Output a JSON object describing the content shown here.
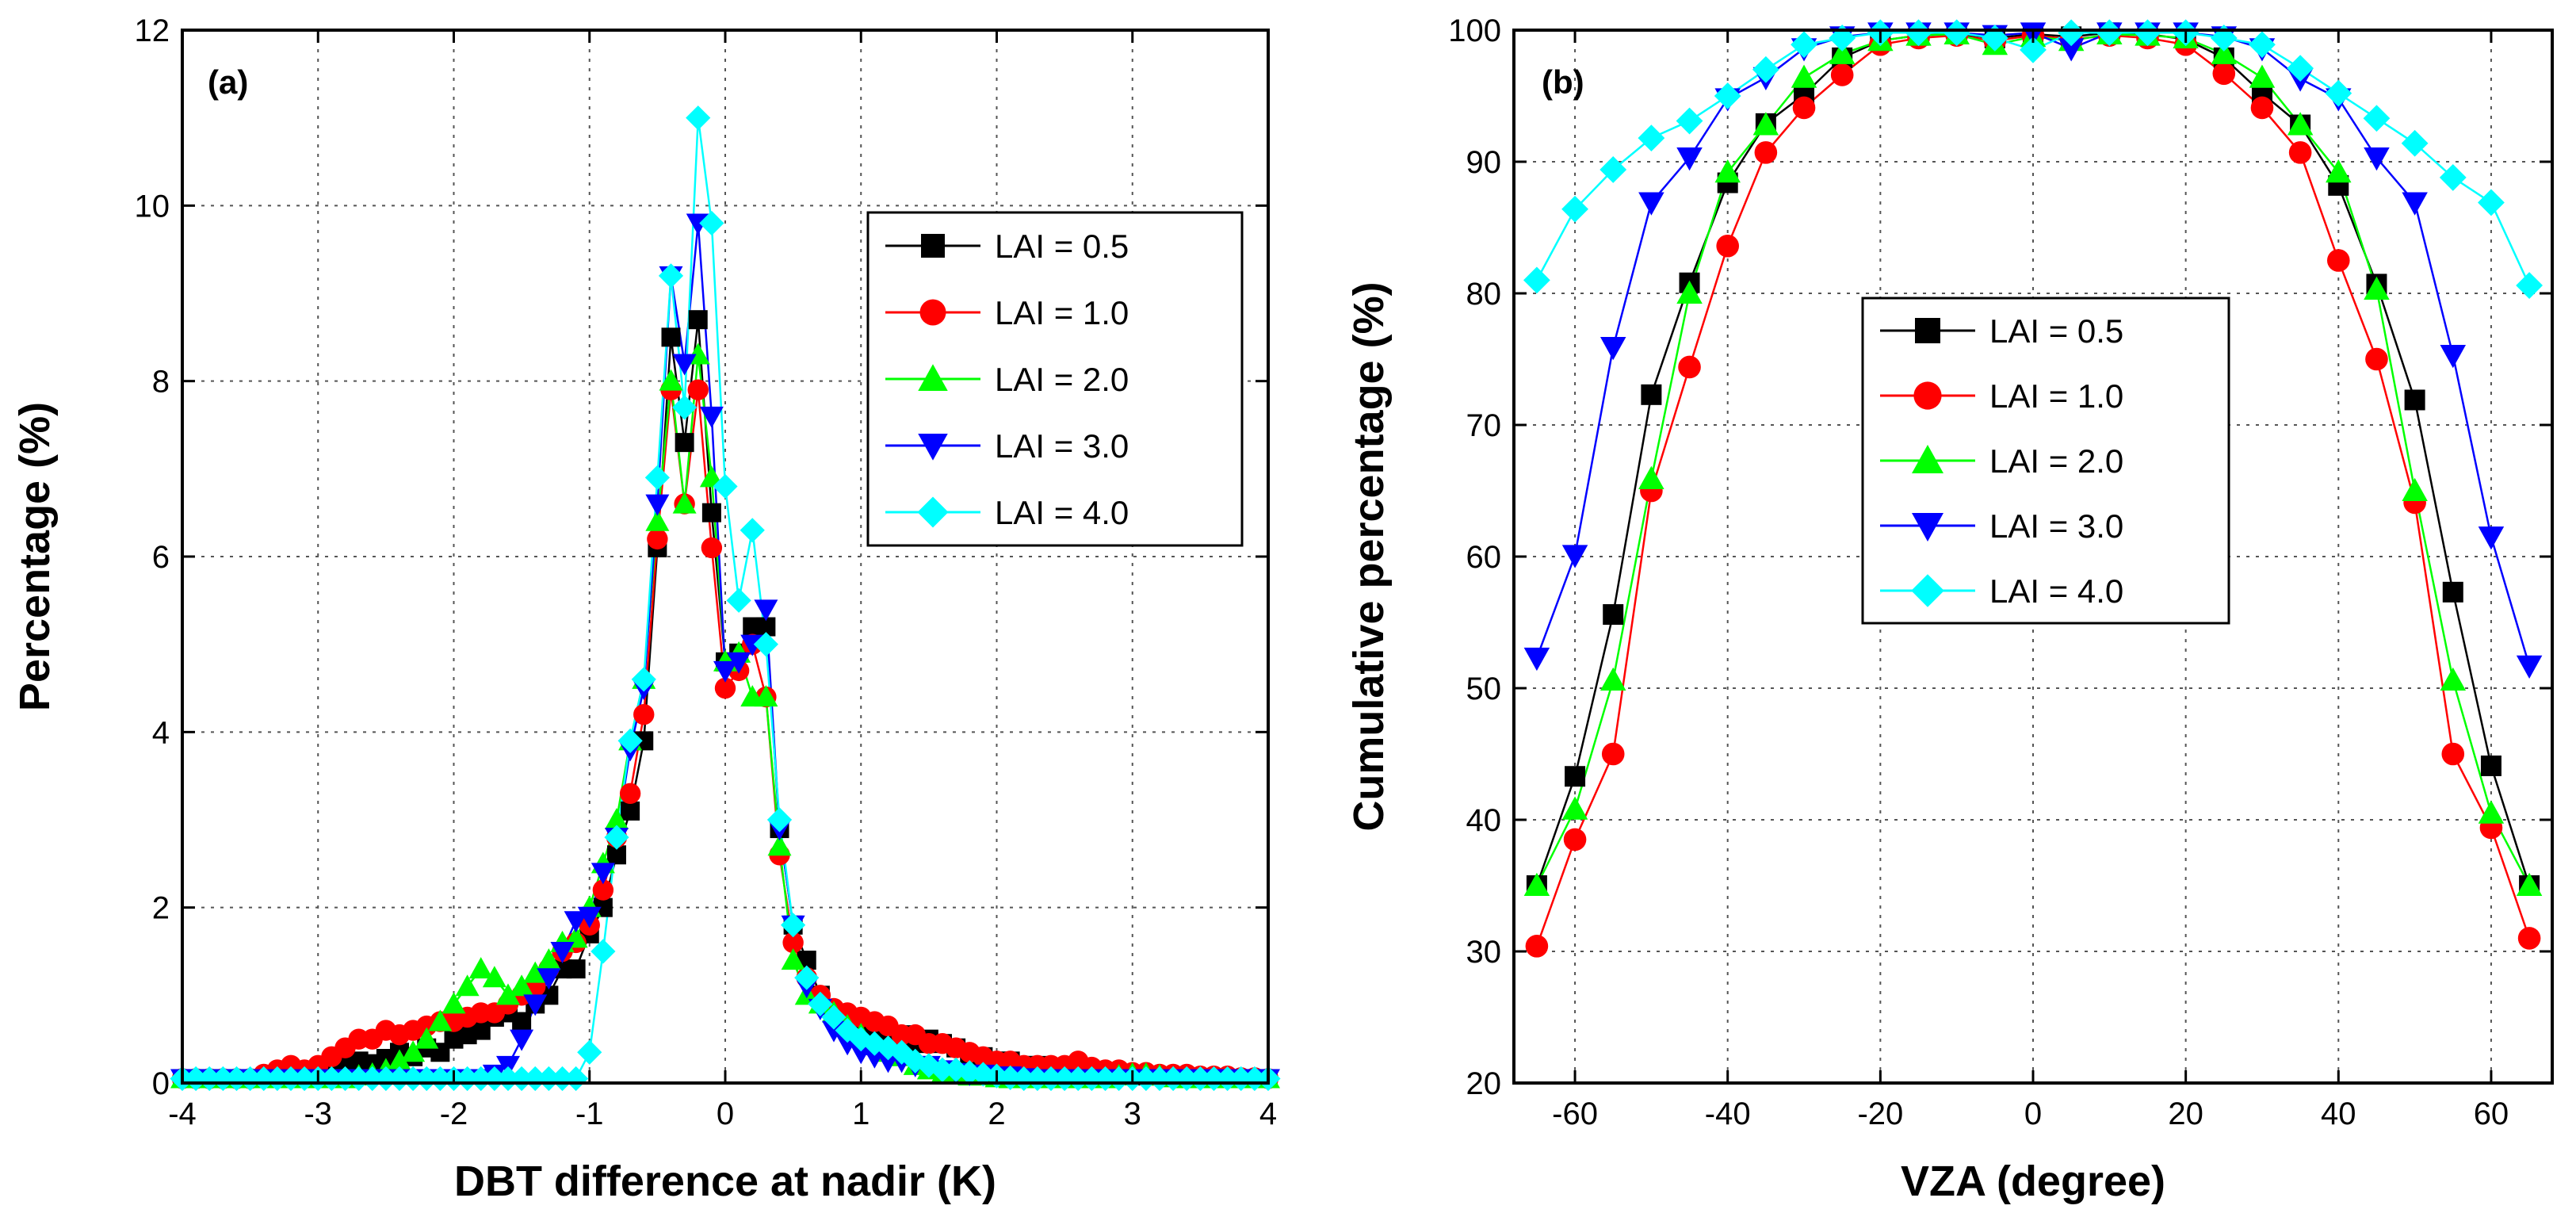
{
  "chart_data": [
    {
      "panel": "(a)",
      "type": "line",
      "xlabel": "DBT difference at nadir (K)",
      "ylabel": "Percentage (%)",
      "xlim": [
        -4,
        4
      ],
      "ylim": [
        0,
        12
      ],
      "xticks": [
        -4,
        -3,
        -2,
        -1,
        0,
        1,
        2,
        3,
        4
      ],
      "yticks": [
        0,
        2,
        4,
        6,
        8,
        10,
        12
      ],
      "grid": true,
      "legend": "center-right",
      "x": [
        -4.0,
        -3.9,
        -3.8,
        -3.7,
        -3.6,
        -3.5,
        -3.4,
        -3.3,
        -3.2,
        -3.1,
        -3.0,
        -2.9,
        -2.8,
        -2.7,
        -2.6,
        -2.5,
        -2.4,
        -2.3,
        -2.2,
        -2.1,
        -2.0,
        -1.9,
        -1.8,
        -1.7,
        -1.6,
        -1.5,
        -1.4,
        -1.3,
        -1.2,
        -1.1,
        -1.0,
        -0.9,
        -0.8,
        -0.7,
        -0.6,
        -0.5,
        -0.4,
        -0.3,
        -0.2,
        -0.1,
        0.0,
        0.1,
        0.2,
        0.3,
        0.4,
        0.5,
        0.6,
        0.7,
        0.8,
        0.9,
        1.0,
        1.1,
        1.2,
        1.3,
        1.4,
        1.5,
        1.6,
        1.7,
        1.8,
        1.9,
        2.0,
        2.1,
        2.2,
        2.3,
        2.4,
        2.5,
        2.6,
        2.7,
        2.8,
        2.9,
        3.0,
        3.1,
        3.2,
        3.3,
        3.4,
        3.5,
        3.6,
        3.7,
        3.8,
        3.9,
        4.0
      ],
      "series": [
        {
          "name": "LAI = 0.5",
          "color": "#000000",
          "marker": "square",
          "values": [
            0.05,
            0.05,
            0.05,
            0.05,
            0.05,
            0.05,
            0.05,
            0.05,
            0.08,
            0.08,
            0.1,
            0.12,
            0.2,
            0.25,
            0.22,
            0.28,
            0.35,
            0.3,
            0.4,
            0.35,
            0.5,
            0.55,
            0.6,
            0.75,
            0.8,
            0.7,
            0.9,
            1.0,
            1.3,
            1.3,
            1.7,
            2.0,
            2.6,
            3.1,
            3.9,
            6.1,
            8.5,
            7.3,
            8.7,
            6.5,
            4.8,
            4.9,
            5.2,
            5.2,
            2.9,
            1.8,
            1.4,
            1.0,
            0.8,
            0.7,
            0.6,
            0.6,
            0.5,
            0.55,
            0.45,
            0.5,
            0.45,
            0.4,
            0.3,
            0.3,
            0.25,
            0.25,
            0.2,
            0.2,
            0.15,
            0.15,
            0.15,
            0.12,
            0.12,
            0.1,
            0.1,
            0.08,
            0.08,
            0.08,
            0.05,
            0.05,
            0.05,
            0.05,
            0.05,
            0.05,
            0.05
          ]
        },
        {
          "name": "LAI = 1.0",
          "color": "#ff0000",
          "marker": "circle",
          "values": [
            0.05,
            0.05,
            0.05,
            0.05,
            0.05,
            0.05,
            0.1,
            0.15,
            0.2,
            0.15,
            0.2,
            0.3,
            0.4,
            0.5,
            0.5,
            0.6,
            0.55,
            0.6,
            0.65,
            0.7,
            0.7,
            0.75,
            0.8,
            0.8,
            0.9,
            1.0,
            1.1,
            1.3,
            1.5,
            1.6,
            1.8,
            2.2,
            2.8,
            3.3,
            4.2,
            6.2,
            7.9,
            6.6,
            7.9,
            6.1,
            4.5,
            4.7,
            5.0,
            4.4,
            2.6,
            1.6,
            1.2,
            1.0,
            0.85,
            0.8,
            0.75,
            0.7,
            0.65,
            0.55,
            0.55,
            0.45,
            0.45,
            0.4,
            0.35,
            0.3,
            0.25,
            0.25,
            0.2,
            0.2,
            0.2,
            0.2,
            0.25,
            0.18,
            0.15,
            0.15,
            0.12,
            0.12,
            0.1,
            0.1,
            0.1,
            0.08,
            0.08,
            0.08,
            0.06,
            0.06,
            0.05
          ]
        },
        {
          "name": "LAI = 2.0",
          "color": "#00ff00",
          "marker": "triangle-up",
          "values": [
            0.05,
            0.05,
            0.05,
            0.05,
            0.05,
            0.05,
            0.05,
            0.05,
            0.05,
            0.05,
            0.05,
            0.05,
            0.05,
            0.08,
            0.1,
            0.15,
            0.25,
            0.35,
            0.5,
            0.7,
            0.9,
            1.1,
            1.3,
            1.2,
            1.0,
            1.1,
            1.25,
            1.4,
            1.6,
            1.65,
            2.0,
            2.5,
            3.0,
            3.9,
            4.6,
            6.4,
            8.0,
            6.6,
            8.3,
            6.9,
            4.8,
            4.9,
            4.4,
            4.4,
            2.7,
            1.4,
            1.0,
            0.9,
            0.8,
            0.65,
            0.55,
            0.45,
            0.35,
            0.3,
            0.2,
            0.15,
            0.1,
            0.1,
            0.08,
            0.08,
            0.06,
            0.05,
            0.05,
            0.05,
            0.05,
            0.05,
            0.05,
            0.05,
            0.05,
            0.08,
            0.1,
            0.1,
            0.08,
            0.06,
            0.05,
            0.05,
            0.05,
            0.05,
            0.05,
            0.05,
            0.05
          ]
        },
        {
          "name": "LAI = 3.0",
          "color": "#0000ff",
          "marker": "triangle-down",
          "values": [
            0.05,
            0.05,
            0.05,
            0.05,
            0.05,
            0.05,
            0.05,
            0.05,
            0.05,
            0.05,
            0.05,
            0.05,
            0.05,
            0.05,
            0.05,
            0.05,
            0.05,
            0.05,
            0.05,
            0.05,
            0.05,
            0.05,
            0.05,
            0.1,
            0.2,
            0.5,
            0.9,
            1.2,
            1.5,
            1.85,
            1.9,
            2.4,
            2.8,
            3.8,
            4.5,
            6.6,
            9.2,
            8.2,
            9.8,
            7.6,
            4.7,
            4.8,
            5.0,
            5.4,
            2.9,
            1.8,
            1.1,
            0.85,
            0.6,
            0.45,
            0.35,
            0.3,
            0.25,
            0.25,
            0.2,
            0.2,
            0.15,
            0.12,
            0.1,
            0.1,
            0.08,
            0.08,
            0.06,
            0.05,
            0.05,
            0.05,
            0.05,
            0.05,
            0.05,
            0.05,
            0.05,
            0.05,
            0.05,
            0.05,
            0.05,
            0.05,
            0.05,
            0.05,
            0.05,
            0.05,
            0.05
          ]
        },
        {
          "name": "LAI = 4.0",
          "color": "#00ffff",
          "marker": "diamond",
          "values": [
            0.05,
            0.05,
            0.05,
            0.05,
            0.05,
            0.05,
            0.05,
            0.05,
            0.05,
            0.05,
            0.05,
            0.05,
            0.05,
            0.05,
            0.05,
            0.05,
            0.05,
            0.05,
            0.05,
            0.05,
            0.05,
            0.05,
            0.05,
            0.05,
            0.05,
            0.05,
            0.05,
            0.05,
            0.05,
            0.05,
            0.35,
            1.5,
            2.8,
            3.9,
            4.6,
            6.9,
            9.2,
            7.7,
            11.0,
            9.8,
            6.8,
            5.5,
            6.3,
            5.0,
            3.0,
            1.8,
            1.2,
            0.9,
            0.75,
            0.6,
            0.5,
            0.45,
            0.4,
            0.35,
            0.25,
            0.2,
            0.15,
            0.15,
            0.12,
            0.1,
            0.08,
            0.06,
            0.05,
            0.05,
            0.05,
            0.05,
            0.05,
            0.05,
            0.05,
            0.05,
            0.05,
            0.05,
            0.05,
            0.05,
            0.05,
            0.05,
            0.05,
            0.05,
            0.05,
            0.05,
            0.05
          ]
        }
      ]
    },
    {
      "panel": "(b)",
      "type": "line",
      "xlabel": "VZA (degree)",
      "ylabel": "Cumulative percentage (%)",
      "xlim": [
        -68,
        68
      ],
      "ylim": [
        20,
        100
      ],
      "xticks": [
        -60,
        -40,
        -20,
        0,
        20,
        40,
        60
      ],
      "yticks": [
        20,
        30,
        40,
        50,
        60,
        70,
        80,
        90,
        100
      ],
      "grid": true,
      "legend": "center-left",
      "x": [
        -65,
        -60,
        -55,
        -50,
        -45,
        -40,
        -35,
        -30,
        -25,
        -20,
        -15,
        -10,
        -5,
        0,
        5,
        10,
        15,
        20,
        25,
        30,
        35,
        40,
        45,
        50,
        55,
        60,
        65
      ],
      "series": [
        {
          "name": "LAI = 0.5",
          "color": "#000000",
          "marker": "square",
          "values": [
            35.0,
            43.3,
            55.6,
            72.3,
            80.8,
            88.4,
            92.9,
            95.1,
            97.9,
            99.2,
            99.6,
            99.7,
            99.4,
            99.7,
            99.5,
            99.8,
            99.7,
            99.3,
            97.9,
            95.2,
            92.8,
            88.2,
            80.7,
            71.9,
            57.3,
            44.1,
            35.0
          ]
        },
        {
          "name": "LAI = 1.0",
          "color": "#ff0000",
          "marker": "circle",
          "values": [
            30.4,
            38.5,
            45.0,
            65.0,
            74.4,
            83.6,
            90.7,
            94.1,
            96.6,
            98.9,
            99.4,
            99.6,
            99.2,
            99.6,
            99.3,
            99.6,
            99.4,
            98.9,
            96.7,
            94.1,
            90.7,
            82.5,
            75.0,
            64.1,
            45.0,
            39.4,
            31.0
          ]
        },
        {
          "name": "LAI = 2.0",
          "color": "#00ff00",
          "marker": "triangle-up",
          "values": [
            35.0,
            40.8,
            50.6,
            65.9,
            80.0,
            89.2,
            92.8,
            96.4,
            98.2,
            99.2,
            99.6,
            99.7,
            98.9,
            99.5,
            99.2,
            99.7,
            99.6,
            99.4,
            98.2,
            96.4,
            92.8,
            89.2,
            80.3,
            65.0,
            50.6,
            40.5,
            35.0
          ]
        },
        {
          "name": "LAI = 3.0",
          "color": "#0000ff",
          "marker": "triangle-down",
          "values": [
            52.3,
            60.1,
            75.9,
            86.9,
            90.3,
            94.8,
            96.4,
            98.6,
            99.5,
            99.8,
            99.8,
            99.8,
            99.6,
            99.8,
            98.6,
            99.8,
            99.8,
            99.8,
            99.5,
            98.6,
            96.3,
            94.8,
            90.3,
            86.9,
            75.3,
            61.5,
            51.7
          ]
        },
        {
          "name": "LAI = 4.0",
          "color": "#00ffff",
          "marker": "diamond",
          "values": [
            81.0,
            86.4,
            89.4,
            91.8,
            93.1,
            95.0,
            97.0,
            98.9,
            99.4,
            99.8,
            99.8,
            99.8,
            99.4,
            98.5,
            99.8,
            99.8,
            99.8,
            99.8,
            99.4,
            98.9,
            97.1,
            95.2,
            93.3,
            91.4,
            88.8,
            86.9,
            80.6
          ]
        }
      ]
    }
  ]
}
